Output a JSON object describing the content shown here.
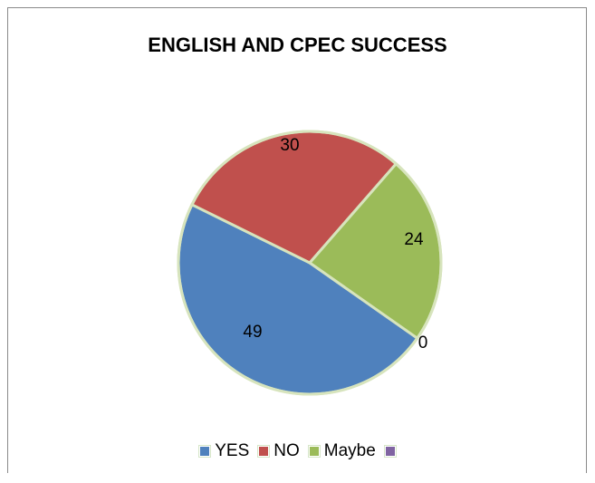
{
  "chart_data": {
    "type": "pie",
    "title": "ENGLISH AND CPEC SUCCESS",
    "categories": [
      "YES",
      "NO",
      "Maybe",
      ""
    ],
    "values": [
      49,
      30,
      24,
      0
    ],
    "data_labels": [
      "49",
      "30",
      "24",
      "0"
    ],
    "colors": [
      "#4F81BD",
      "#C0504D",
      "#9BBB59",
      "#8064A2"
    ],
    "legend_position": "bottom",
    "slice_border_color": "#d7e4bd"
  }
}
